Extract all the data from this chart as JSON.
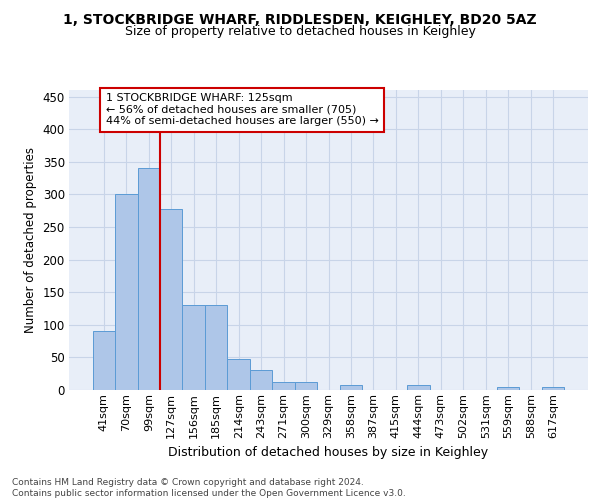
{
  "title1": "1, STOCKBRIDGE WHARF, RIDDLESDEN, KEIGHLEY, BD20 5AZ",
  "title2": "Size of property relative to detached houses in Keighley",
  "xlabel": "Distribution of detached houses by size in Keighley",
  "ylabel": "Number of detached properties",
  "categories": [
    "41sqm",
    "70sqm",
    "99sqm",
    "127sqm",
    "156sqm",
    "185sqm",
    "214sqm",
    "243sqm",
    "271sqm",
    "300sqm",
    "329sqm",
    "358sqm",
    "387sqm",
    "415sqm",
    "444sqm",
    "473sqm",
    "502sqm",
    "531sqm",
    "559sqm",
    "588sqm",
    "617sqm"
  ],
  "values": [
    91,
    301,
    340,
    278,
    131,
    131,
    47,
    30,
    13,
    13,
    0,
    8,
    0,
    0,
    8,
    0,
    0,
    0,
    4,
    0,
    4
  ],
  "bar_color": "#aec6e8",
  "bar_edge_color": "#5b9bd5",
  "vline_index": 3,
  "vline_color": "#cc0000",
  "ylim_max": 460,
  "yticks": [
    0,
    50,
    100,
    150,
    200,
    250,
    300,
    350,
    400,
    450
  ],
  "annotation_line1": "1 STOCKBRIDGE WHARF: 125sqm",
  "annotation_line2": "← 56% of detached houses are smaller (705)",
  "annotation_line3": "44% of semi-detached houses are larger (550) →",
  "annotation_box_edge": "#cc0000",
  "footer_line1": "Contains HM Land Registry data © Crown copyright and database right 2024.",
  "footer_line2": "Contains public sector information licensed under the Open Government Licence v3.0.",
  "grid_color": "#c8d4e8",
  "bg_color": "#e8eef8",
  "title1_fontsize": 10,
  "title2_fontsize": 9
}
